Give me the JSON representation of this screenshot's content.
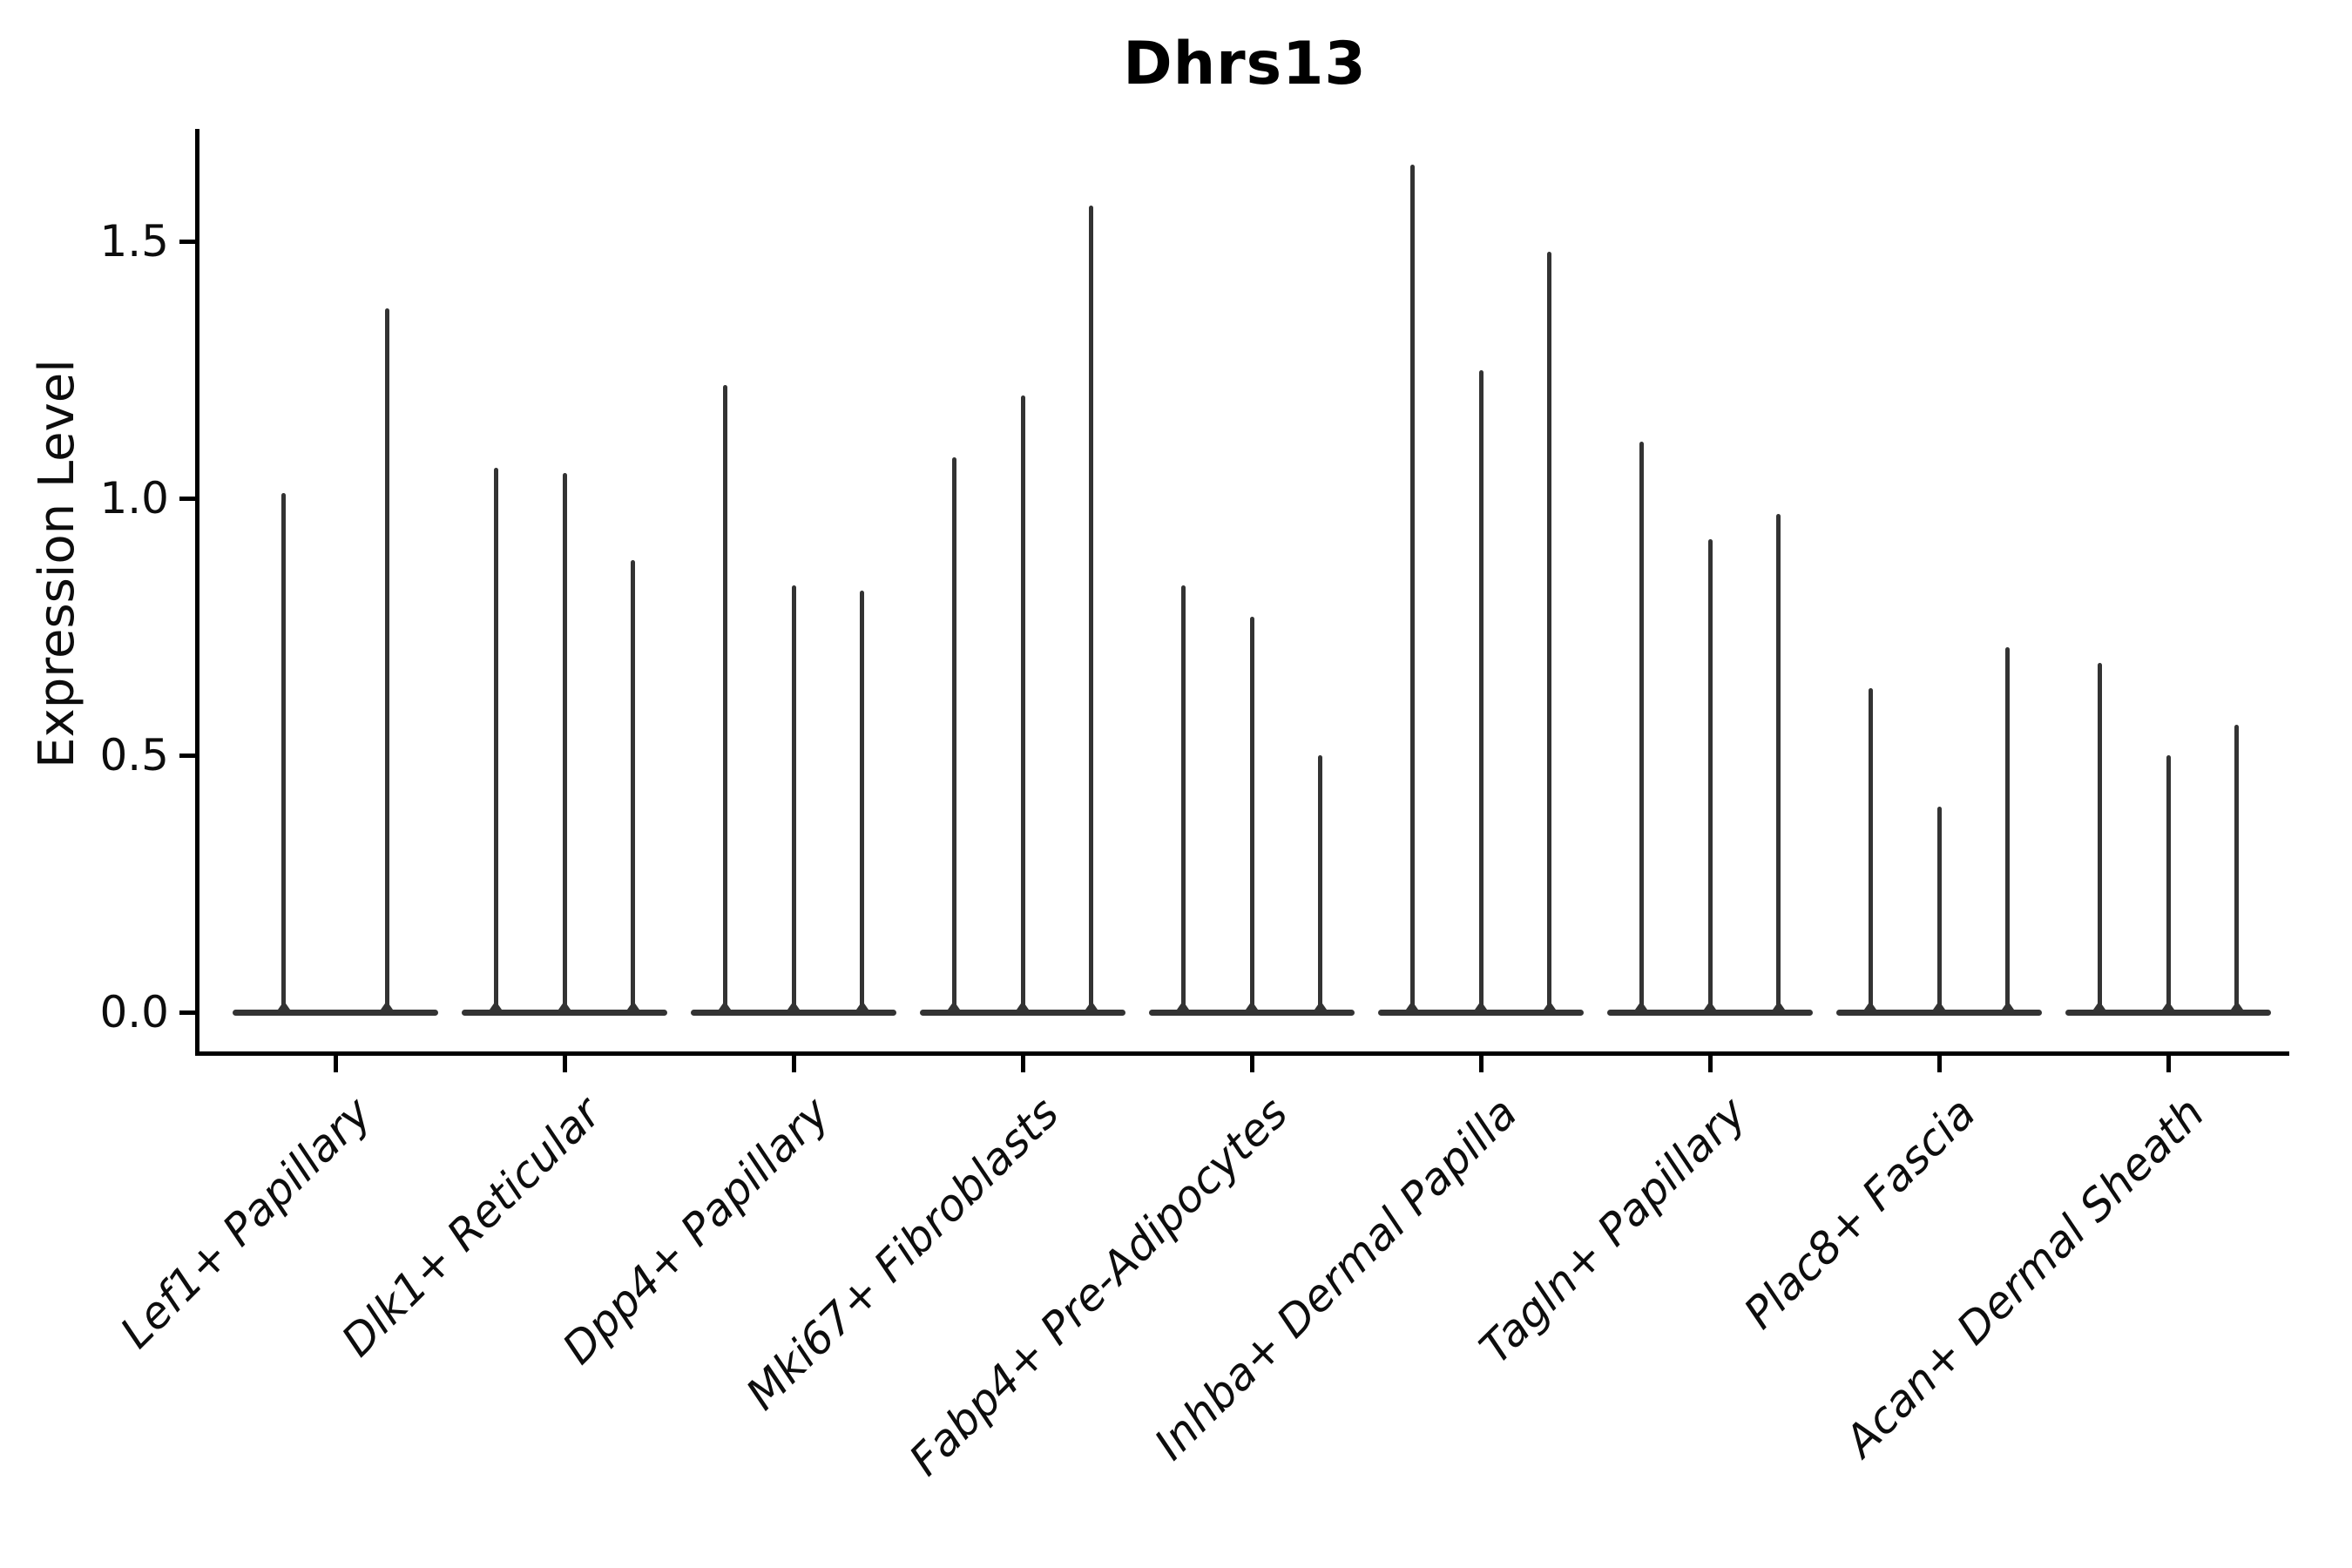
{
  "chart_data": {
    "type": "violin",
    "title": "Dhrs13",
    "xlabel": "",
    "ylabel": "Expression Level",
    "ylim": [
      -0.08,
      1.72
    ],
    "grid": false,
    "legend": null,
    "yticks": [
      {
        "label": "0.0",
        "value": 0.0
      },
      {
        "label": "0.5",
        "value": 0.5
      },
      {
        "label": "1.0",
        "value": 1.0
      },
      {
        "label": "1.5",
        "value": 1.5
      }
    ],
    "categories": [
      "Lef1+ Papillary",
      "Dlk1+ Reticular",
      "Dpp4+ Papillary",
      "Mki67+ Fibroblasts",
      "Fabp4+ Pre-Adipocytes",
      "Inhba+ Dermal Papilla",
      "Tagln+ Papillary",
      "Plac8+ Fascia",
      "Acan+ Dermal Sheath"
    ],
    "groups": [
      {
        "category": "Lef1+ Papillary",
        "peaks": [
          1.01,
          1.37
        ]
      },
      {
        "category": "Dlk1+ Reticular",
        "peaks": [
          1.06,
          1.05,
          0.88
        ]
      },
      {
        "category": "Dpp4+ Papillary",
        "peaks": [
          1.22,
          0.83,
          0.82
        ]
      },
      {
        "category": "Mki67+ Fibroblasts",
        "peaks": [
          1.08,
          1.2,
          1.57
        ]
      },
      {
        "category": "Fabp4+ Pre-Adipocytes",
        "peaks": [
          0.83,
          0.77,
          0.5
        ]
      },
      {
        "category": "Inhba+ Dermal Papilla",
        "peaks": [
          1.65,
          1.25,
          1.48
        ]
      },
      {
        "category": "Tagln+ Papillary",
        "peaks": [
          1.11,
          0.92,
          0.97
        ]
      },
      {
        "category": "Plac8+ Fascia",
        "peaks": [
          0.63,
          0.4,
          0.71
        ]
      },
      {
        "category": "Acan+ Dermal Sheath",
        "peaks": [
          0.68,
          0.5,
          0.56
        ]
      }
    ],
    "colors": {
      "violin": "#333333",
      "axis": "#000000",
      "text": "#0d0d0d",
      "background": "#ffffff"
    }
  }
}
